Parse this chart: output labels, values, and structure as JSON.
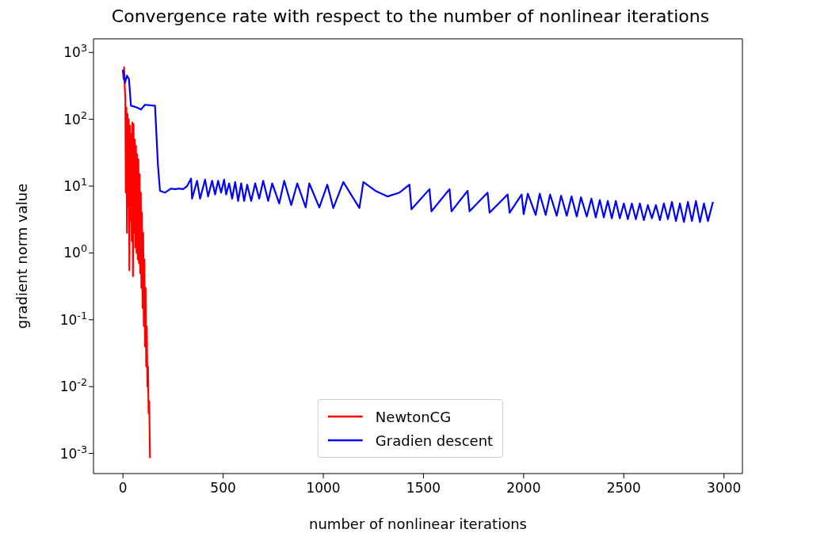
{
  "chart_data": {
    "type": "line",
    "title": "Convergence rate with respect to the number of nonlinear iterations",
    "xlabel": "number of nonlinear iterations",
    "ylabel": "gradient norm value",
    "log": "y",
    "xlim": [
      -147,
      3092
    ],
    "ylim": [
      0.0005,
      1600
    ],
    "xticks": [
      0,
      500,
      1000,
      1500,
      2000,
      2500,
      3000
    ],
    "yticks": [
      {
        "value": 0.001,
        "label": "10$^{-3}$"
      },
      {
        "value": 0.01,
        "label": "10$^{-2}$"
      },
      {
        "value": 0.1,
        "label": "10$^{-1}$"
      },
      {
        "value": 1,
        "label": "10$^{0}$"
      },
      {
        "value": 10,
        "label": "10$^{1}$"
      },
      {
        "value": 100,
        "label": "10$^{2}$"
      },
      {
        "value": 1000,
        "label": "10$^{3}$"
      }
    ],
    "legend": "bottom",
    "series": [
      {
        "name": "NewtonCG",
        "color": "#ff0000",
        "x": [
          0,
          3,
          6,
          9,
          12,
          14,
          17,
          20,
          23,
          26,
          29,
          32,
          35,
          38,
          41,
          44,
          47,
          50,
          53,
          56,
          59,
          62,
          65,
          68,
          71,
          74,
          77,
          80,
          83,
          86,
          89,
          92,
          95,
          98,
          101,
          104,
          107,
          110,
          113,
          116,
          119,
          122,
          125,
          128,
          131,
          135
        ],
        "values": [
          550,
          400,
          600,
          300,
          200,
          8,
          150,
          2,
          120,
          5,
          100,
          0.55,
          80,
          3,
          60,
          1.5,
          90,
          0.45,
          85,
          2,
          50,
          1.2,
          40,
          1,
          30,
          0.8,
          25,
          0.7,
          15,
          0.5,
          8,
          0.3,
          4,
          0.15,
          2,
          0.08,
          0.8,
          0.04,
          0.3,
          0.02,
          0.08,
          0.01,
          0.02,
          0.004,
          0.006,
          0.00085
        ]
      },
      {
        "name": "Gradien descent",
        "color": "#0000ff",
        "x": [
          0,
          10,
          20,
          30,
          40,
          70,
          90,
          110,
          150,
          160,
          175,
          185,
          210,
          240,
          260,
          280,
          300,
          320,
          340,
          345,
          370,
          385,
          410,
          425,
          445,
          460,
          475,
          490,
          505,
          515,
          530,
          545,
          560,
          575,
          590,
          605,
          620,
          640,
          660,
          680,
          700,
          725,
          745,
          780,
          805,
          840,
          870,
          912,
          930,
          980,
          1020,
          1050,
          1100,
          1180,
          1200,
          1260,
          1320,
          1380,
          1430,
          1440,
          1530,
          1540,
          1630,
          1640,
          1720,
          1730,
          1820,
          1830,
          1920,
          1930,
          1990,
          2000,
          2021,
          2060,
          2080,
          2110,
          2132,
          2165,
          2187,
          2215,
          2239,
          2265,
          2286,
          2315,
          2338,
          2360,
          2380,
          2400,
          2420,
          2440,
          2460,
          2480,
          2500,
          2520,
          2540,
          2560,
          2580,
          2600,
          2620,
          2640,
          2660,
          2680,
          2700,
          2720,
          2740,
          2760,
          2780,
          2800,
          2820,
          2840,
          2860,
          2880,
          2900,
          2920,
          2945
        ],
        "values": [
          550,
          350,
          450,
          400,
          160,
          150,
          140,
          165,
          160,
          160,
          20,
          8.5,
          8,
          9.2,
          9,
          9.2,
          9,
          10,
          13,
          6.5,
          12,
          6.5,
          12.5,
          7,
          12,
          7.5,
          12,
          8,
          12.5,
          7.5,
          11,
          6.5,
          11.5,
          6,
          11,
          6,
          10.5,
          6,
          11,
          6.5,
          12,
          6,
          11,
          5.5,
          12,
          5.2,
          11,
          4.8,
          11,
          4.8,
          10.5,
          4.7,
          11.5,
          4.7,
          11.5,
          8.5,
          7,
          8,
          10.5,
          4.5,
          9,
          4.2,
          9,
          4.2,
          8.5,
          4.2,
          8,
          4,
          7.5,
          4,
          7.5,
          3.8,
          7.7,
          3.7,
          7.7,
          3.7,
          7.5,
          3.6,
          7.2,
          3.6,
          7,
          3.5,
          6.8,
          3.5,
          6.5,
          3.4,
          6.2,
          3.4,
          6,
          3.3,
          6,
          3.3,
          5.5,
          3.2,
          5.5,
          3.2,
          5.5,
          3.1,
          5.2,
          3.3,
          5.2,
          3.1,
          5.5,
          3.2,
          5.8,
          3,
          5.5,
          2.9,
          5.8,
          3,
          6,
          2.9,
          5.5,
          3,
          5.8
        ]
      }
    ]
  }
}
